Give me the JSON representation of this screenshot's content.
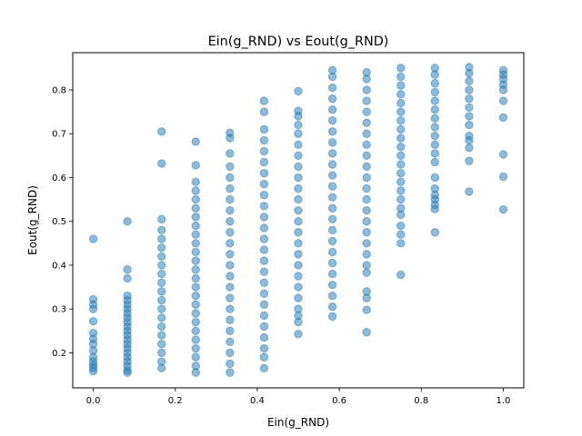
{
  "chart_data": {
    "type": "scatter",
    "title": "Ein(g_RND) vs Eout(g_RND)",
    "xlabel": "Ein(g_RND)",
    "ylabel": "Eout(g_RND)",
    "xlim": [
      -0.05,
      1.05
    ],
    "ylim": [
      0.12,
      0.885
    ],
    "xticks": [
      0.0,
      0.2,
      0.4,
      0.6,
      0.8,
      1.0
    ],
    "xtick_labels": [
      "0.0",
      "0.2",
      "0.4",
      "0.6",
      "0.8",
      "1.0"
    ],
    "yticks": [
      0.2,
      0.3,
      0.4,
      0.5,
      0.6,
      0.7,
      0.8
    ],
    "ytick_labels": [
      "0.2",
      "0.3",
      "0.4",
      "0.5",
      "0.6",
      "0.7",
      "0.8"
    ],
    "grid": false,
    "marker_color": "#1f77b4",
    "marker_alpha": 0.5,
    "x_levels": [
      0.0,
      0.0833,
      0.1667,
      0.25,
      0.3333,
      0.4167,
      0.5,
      0.5833,
      0.6667,
      0.75,
      0.8333,
      0.9167,
      1.0
    ],
    "points": [
      [
        0.0,
        0.46
      ],
      [
        0.0,
        0.322
      ],
      [
        0.0,
        0.31
      ],
      [
        0.0,
        0.3
      ],
      [
        0.0,
        0.272
      ],
      [
        0.0,
        0.245
      ],
      [
        0.0,
        0.232
      ],
      [
        0.0,
        0.22
      ],
      [
        0.0,
        0.205
      ],
      [
        0.0,
        0.19
      ],
      [
        0.0,
        0.18
      ],
      [
        0.0,
        0.172
      ],
      [
        0.0,
        0.165
      ],
      [
        0.0,
        0.158
      ],
      [
        0.0833,
        0.5
      ],
      [
        0.0833,
        0.39
      ],
      [
        0.0833,
        0.37
      ],
      [
        0.0833,
        0.33
      ],
      [
        0.0833,
        0.32
      ],
      [
        0.0833,
        0.31
      ],
      [
        0.0833,
        0.3
      ],
      [
        0.0833,
        0.29
      ],
      [
        0.0833,
        0.28
      ],
      [
        0.0833,
        0.27
      ],
      [
        0.0833,
        0.26
      ],
      [
        0.0833,
        0.25
      ],
      [
        0.0833,
        0.24
      ],
      [
        0.0833,
        0.23
      ],
      [
        0.0833,
        0.22
      ],
      [
        0.0833,
        0.21
      ],
      [
        0.0833,
        0.2
      ],
      [
        0.0833,
        0.19
      ],
      [
        0.0833,
        0.18
      ],
      [
        0.0833,
        0.17
      ],
      [
        0.0833,
        0.16
      ],
      [
        0.0833,
        0.155
      ],
      [
        0.1667,
        0.705
      ],
      [
        0.1667,
        0.632
      ],
      [
        0.1667,
        0.505
      ],
      [
        0.1667,
        0.48
      ],
      [
        0.1667,
        0.46
      ],
      [
        0.1667,
        0.44
      ],
      [
        0.1667,
        0.42
      ],
      [
        0.1667,
        0.4
      ],
      [
        0.1667,
        0.38
      ],
      [
        0.1667,
        0.36
      ],
      [
        0.1667,
        0.34
      ],
      [
        0.1667,
        0.32
      ],
      [
        0.1667,
        0.3
      ],
      [
        0.1667,
        0.28
      ],
      [
        0.1667,
        0.26
      ],
      [
        0.1667,
        0.24
      ],
      [
        0.1667,
        0.22
      ],
      [
        0.1667,
        0.2
      ],
      [
        0.1667,
        0.18
      ],
      [
        0.1667,
        0.165
      ],
      [
        0.25,
        0.682
      ],
      [
        0.25,
        0.628
      ],
      [
        0.25,
        0.59
      ],
      [
        0.25,
        0.57
      ],
      [
        0.25,
        0.55
      ],
      [
        0.25,
        0.53
      ],
      [
        0.25,
        0.51
      ],
      [
        0.25,
        0.49
      ],
      [
        0.25,
        0.47
      ],
      [
        0.25,
        0.45
      ],
      [
        0.25,
        0.43
      ],
      [
        0.25,
        0.41
      ],
      [
        0.25,
        0.39
      ],
      [
        0.25,
        0.37
      ],
      [
        0.25,
        0.35
      ],
      [
        0.25,
        0.33
      ],
      [
        0.25,
        0.31
      ],
      [
        0.25,
        0.29
      ],
      [
        0.25,
        0.27
      ],
      [
        0.25,
        0.25
      ],
      [
        0.25,
        0.23
      ],
      [
        0.25,
        0.21
      ],
      [
        0.25,
        0.19
      ],
      [
        0.25,
        0.17
      ],
      [
        0.25,
        0.155
      ],
      [
        0.3333,
        0.702
      ],
      [
        0.3333,
        0.69
      ],
      [
        0.3333,
        0.655
      ],
      [
        0.3333,
        0.625
      ],
      [
        0.3333,
        0.6
      ],
      [
        0.3333,
        0.575
      ],
      [
        0.3333,
        0.55
      ],
      [
        0.3333,
        0.525
      ],
      [
        0.3333,
        0.5
      ],
      [
        0.3333,
        0.475
      ],
      [
        0.3333,
        0.45
      ],
      [
        0.3333,
        0.425
      ],
      [
        0.3333,
        0.4
      ],
      [
        0.3333,
        0.375
      ],
      [
        0.3333,
        0.35
      ],
      [
        0.3333,
        0.325
      ],
      [
        0.3333,
        0.3
      ],
      [
        0.3333,
        0.275
      ],
      [
        0.3333,
        0.25
      ],
      [
        0.3333,
        0.225
      ],
      [
        0.3333,
        0.2
      ],
      [
        0.3333,
        0.175
      ],
      [
        0.3333,
        0.155
      ],
      [
        0.4167,
        0.775
      ],
      [
        0.4167,
        0.75
      ],
      [
        0.4167,
        0.71
      ],
      [
        0.4167,
        0.685
      ],
      [
        0.4167,
        0.66
      ],
      [
        0.4167,
        0.635
      ],
      [
        0.4167,
        0.61
      ],
      [
        0.4167,
        0.585
      ],
      [
        0.4167,
        0.56
      ],
      [
        0.4167,
        0.535
      ],
      [
        0.4167,
        0.51
      ],
      [
        0.4167,
        0.485
      ],
      [
        0.4167,
        0.46
      ],
      [
        0.4167,
        0.435
      ],
      [
        0.4167,
        0.41
      ],
      [
        0.4167,
        0.385
      ],
      [
        0.4167,
        0.36
      ],
      [
        0.4167,
        0.335
      ],
      [
        0.4167,
        0.31
      ],
      [
        0.4167,
        0.285
      ],
      [
        0.4167,
        0.26
      ],
      [
        0.4167,
        0.235
      ],
      [
        0.4167,
        0.21
      ],
      [
        0.4167,
        0.19
      ],
      [
        0.4167,
        0.165
      ],
      [
        0.5,
        0.797
      ],
      [
        0.5,
        0.752
      ],
      [
        0.5,
        0.74
      ],
      [
        0.5,
        0.72
      ],
      [
        0.5,
        0.7
      ],
      [
        0.5,
        0.675
      ],
      [
        0.5,
        0.65
      ],
      [
        0.5,
        0.625
      ],
      [
        0.5,
        0.6
      ],
      [
        0.5,
        0.575
      ],
      [
        0.5,
        0.55
      ],
      [
        0.5,
        0.525
      ],
      [
        0.5,
        0.5
      ],
      [
        0.5,
        0.475
      ],
      [
        0.5,
        0.45
      ],
      [
        0.5,
        0.425
      ],
      [
        0.5,
        0.4
      ],
      [
        0.5,
        0.375
      ],
      [
        0.5,
        0.35
      ],
      [
        0.5,
        0.325
      ],
      [
        0.5,
        0.3
      ],
      [
        0.5,
        0.285
      ],
      [
        0.5,
        0.27
      ],
      [
        0.5,
        0.243
      ],
      [
        0.5833,
        0.845
      ],
      [
        0.5833,
        0.83
      ],
      [
        0.5833,
        0.805
      ],
      [
        0.5833,
        0.78
      ],
      [
        0.5833,
        0.755
      ],
      [
        0.5833,
        0.73
      ],
      [
        0.5833,
        0.705
      ],
      [
        0.5833,
        0.68
      ],
      [
        0.5833,
        0.655
      ],
      [
        0.5833,
        0.63
      ],
      [
        0.5833,
        0.605
      ],
      [
        0.5833,
        0.58
      ],
      [
        0.5833,
        0.555
      ],
      [
        0.5833,
        0.53
      ],
      [
        0.5833,
        0.505
      ],
      [
        0.5833,
        0.48
      ],
      [
        0.5833,
        0.455
      ],
      [
        0.5833,
        0.43
      ],
      [
        0.5833,
        0.405
      ],
      [
        0.5833,
        0.38
      ],
      [
        0.5833,
        0.355
      ],
      [
        0.5833,
        0.33
      ],
      [
        0.5833,
        0.305
      ],
      [
        0.5833,
        0.283
      ],
      [
        0.6667,
        0.84
      ],
      [
        0.6667,
        0.825
      ],
      [
        0.6667,
        0.8
      ],
      [
        0.6667,
        0.775
      ],
      [
        0.6667,
        0.75
      ],
      [
        0.6667,
        0.725
      ],
      [
        0.6667,
        0.7
      ],
      [
        0.6667,
        0.675
      ],
      [
        0.6667,
        0.65
      ],
      [
        0.6667,
        0.625
      ],
      [
        0.6667,
        0.6
      ],
      [
        0.6667,
        0.575
      ],
      [
        0.6667,
        0.55
      ],
      [
        0.6667,
        0.525
      ],
      [
        0.6667,
        0.5
      ],
      [
        0.6667,
        0.475
      ],
      [
        0.6667,
        0.45
      ],
      [
        0.6667,
        0.425
      ],
      [
        0.6667,
        0.4
      ],
      [
        0.6667,
        0.383
      ],
      [
        0.6667,
        0.34
      ],
      [
        0.6667,
        0.325
      ],
      [
        0.6667,
        0.298
      ],
      [
        0.6667,
        0.247
      ],
      [
        0.75,
        0.85
      ],
      [
        0.75,
        0.83
      ],
      [
        0.75,
        0.81
      ],
      [
        0.75,
        0.79
      ],
      [
        0.75,
        0.77
      ],
      [
        0.75,
        0.75
      ],
      [
        0.75,
        0.73
      ],
      [
        0.75,
        0.71
      ],
      [
        0.75,
        0.69
      ],
      [
        0.75,
        0.67
      ],
      [
        0.75,
        0.65
      ],
      [
        0.75,
        0.63
      ],
      [
        0.75,
        0.61
      ],
      [
        0.75,
        0.59
      ],
      [
        0.75,
        0.57
      ],
      [
        0.75,
        0.55
      ],
      [
        0.75,
        0.53
      ],
      [
        0.75,
        0.515
      ],
      [
        0.75,
        0.49
      ],
      [
        0.75,
        0.47
      ],
      [
        0.75,
        0.45
      ],
      [
        0.75,
        0.378
      ],
      [
        0.8333,
        0.85
      ],
      [
        0.8333,
        0.835
      ],
      [
        0.8333,
        0.815
      ],
      [
        0.8333,
        0.795
      ],
      [
        0.8333,
        0.775
      ],
      [
        0.8333,
        0.755
      ],
      [
        0.8333,
        0.735
      ],
      [
        0.8333,
        0.715
      ],
      [
        0.8333,
        0.695
      ],
      [
        0.8333,
        0.675
      ],
      [
        0.8333,
        0.655
      ],
      [
        0.8333,
        0.635
      ],
      [
        0.8333,
        0.6
      ],
      [
        0.8333,
        0.575
      ],
      [
        0.8333,
        0.56
      ],
      [
        0.8333,
        0.55
      ],
      [
        0.8333,
        0.538
      ],
      [
        0.8333,
        0.528
      ],
      [
        0.8333,
        0.475
      ],
      [
        0.9167,
        0.852
      ],
      [
        0.9167,
        0.838
      ],
      [
        0.9167,
        0.82
      ],
      [
        0.9167,
        0.8
      ],
      [
        0.9167,
        0.78
      ],
      [
        0.9167,
        0.76
      ],
      [
        0.9167,
        0.74
      ],
      [
        0.9167,
        0.72
      ],
      [
        0.9167,
        0.695
      ],
      [
        0.9167,
        0.685
      ],
      [
        0.9167,
        0.668
      ],
      [
        0.9167,
        0.638
      ],
      [
        0.9167,
        0.568
      ],
      [
        1.0,
        0.845
      ],
      [
        1.0,
        0.835
      ],
      [
        1.0,
        0.825
      ],
      [
        1.0,
        0.812
      ],
      [
        1.0,
        0.8
      ],
      [
        1.0,
        0.775
      ],
      [
        1.0,
        0.737
      ],
      [
        1.0,
        0.653
      ],
      [
        1.0,
        0.602
      ],
      [
        1.0,
        0.527
      ]
    ]
  }
}
